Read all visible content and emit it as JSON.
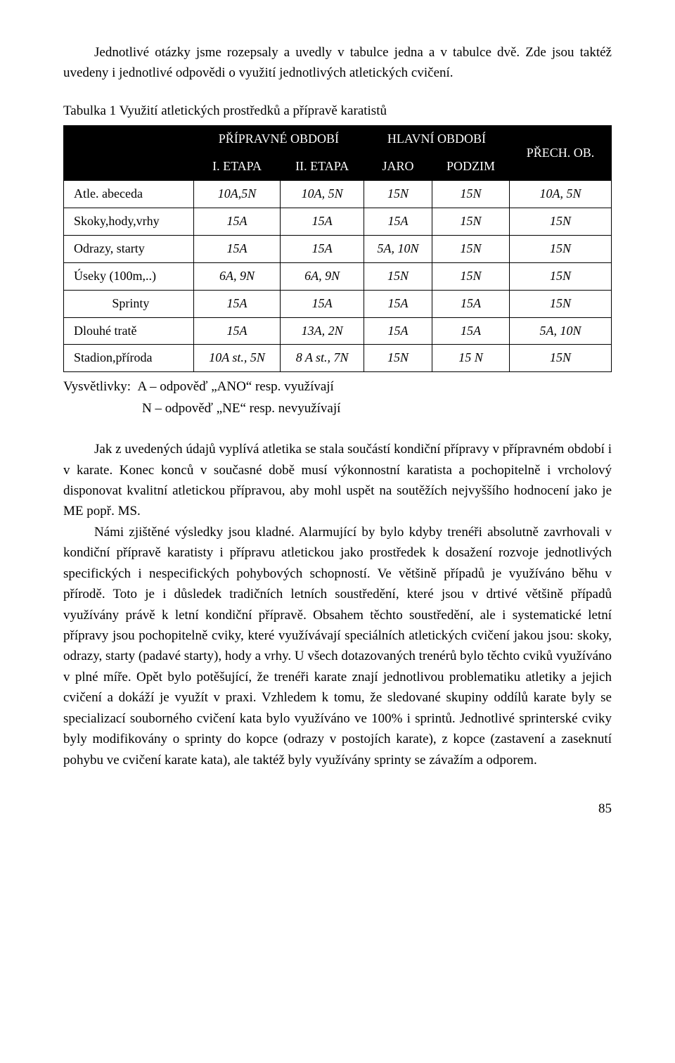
{
  "intro": "Jednotlivé otázky jsme rozepsaly a uvedly v tabulce jedna a v tabulce dvě. Zde jsou taktéž uvedeny i jednotlivé odpovědi o využití jednotlivých atletických cvičení.",
  "table_caption": "Tabulka 1   Využití atletických prostředků a přípravě karatistů",
  "table": {
    "header1": {
      "pripravne": "PŘÍPRAVNÉ OBDOBÍ",
      "hlavni": "HLAVNÍ OBDOBÍ",
      "prech": "PŘECH. OB."
    },
    "header2": {
      "etapa1": "I. ETAPA",
      "etapa2": "II. ETAPA",
      "jaro": "JARO",
      "podzim": "PODZIM"
    },
    "rows": [
      {
        "label": "Atle. abeceda",
        "c1": "10A,5N",
        "c2": "10A, 5N",
        "c3": "15N",
        "c4": "15N",
        "c5": "10A, 5N"
      },
      {
        "label": "Skoky,hody,vrhy",
        "c1": "15A",
        "c2": "15A",
        "c3": "15A",
        "c4": "15N",
        "c5": "15N"
      },
      {
        "label": "Odrazy, starty",
        "c1": "15A",
        "c2": "15A",
        "c3": "5A, 10N",
        "c4": "15N",
        "c5": "15N"
      },
      {
        "label": "Úseky (100m,..)",
        "c1": "6A, 9N",
        "c2": "6A, 9N",
        "c3": "15N",
        "c4": "15N",
        "c5": "15N"
      },
      {
        "label": "Sprinty",
        "c1": "15A",
        "c2": "15A",
        "c3": "15A",
        "c4": "15A",
        "c5": "15N"
      },
      {
        "label": "Dlouhé tratě",
        "c1": "15A",
        "c2": "13A, 2N",
        "c3": "15A",
        "c4": "15A",
        "c5": "5A, 10N"
      },
      {
        "label": "Stadion,příroda",
        "c1": "10A st., 5N",
        "c2": "8 A st., 7N",
        "c3": "15N",
        "c4": "15 N",
        "c5": "15N"
      }
    ]
  },
  "legend": {
    "line1": "Vysvětlivky:  A – odpověď „ANO“ resp. využívají",
    "line2": "N – odpověď „NE“ resp. nevyužívají"
  },
  "body": {
    "p1": "Jak z uvedených údajů vyplívá atletika se stala součástí  kondiční přípravy v přípravném období i v karate. Konec konců v současné době musí výkonnostní karatista a pochopitelně i vrcholový disponovat kvalitní atletickou přípravou, aby mohl uspět na soutěžích nejvyššího hodnocení jako je ME popř. MS.",
    "p2": "Námi zjištěné výsledky jsou kladné. Alarmující by bylo kdyby trenéři absolutně zavrhovali v kondiční přípravě karatisty i přípravu atletickou jako prostředek k dosažení rozvoje jednotlivých specifických i nespecifických pohybových schopností. Ve většině případů je využíváno běhu v přírodě. Toto je i důsledek tradičních letních soustředění, které jsou v drtivé většině případů využívány právě k letní kondiční přípravě. Obsahem těchto soustředění, ale i systematické letní přípravy jsou pochopitelně cviky, které využívávají speciálních atletických cvičení jakou jsou: skoky, odrazy, starty (padavé starty), hody a vrhy. U všech dotazovaných trenérů bylo těchto cviků využíváno v plné míře. Opět bylo potěšující, že trenéři karate znají jednotlivou problematiku atletiky a jejich cvičení a dokáží je využít v praxi. Vzhledem k tomu, že sledované skupiny oddílů karate byly se specializací souborného cvičení kata bylo využíváno ve 100% i sprintů.  Jednotlivé sprinterské cviky byly modifikovány o sprinty do kopce (odrazy v postojích karate), z kopce (zastavení a zaseknutí pohybu ve cvičení karate kata), ale taktéž byly využívány sprinty se závažím a odporem."
  },
  "page_number": "85"
}
